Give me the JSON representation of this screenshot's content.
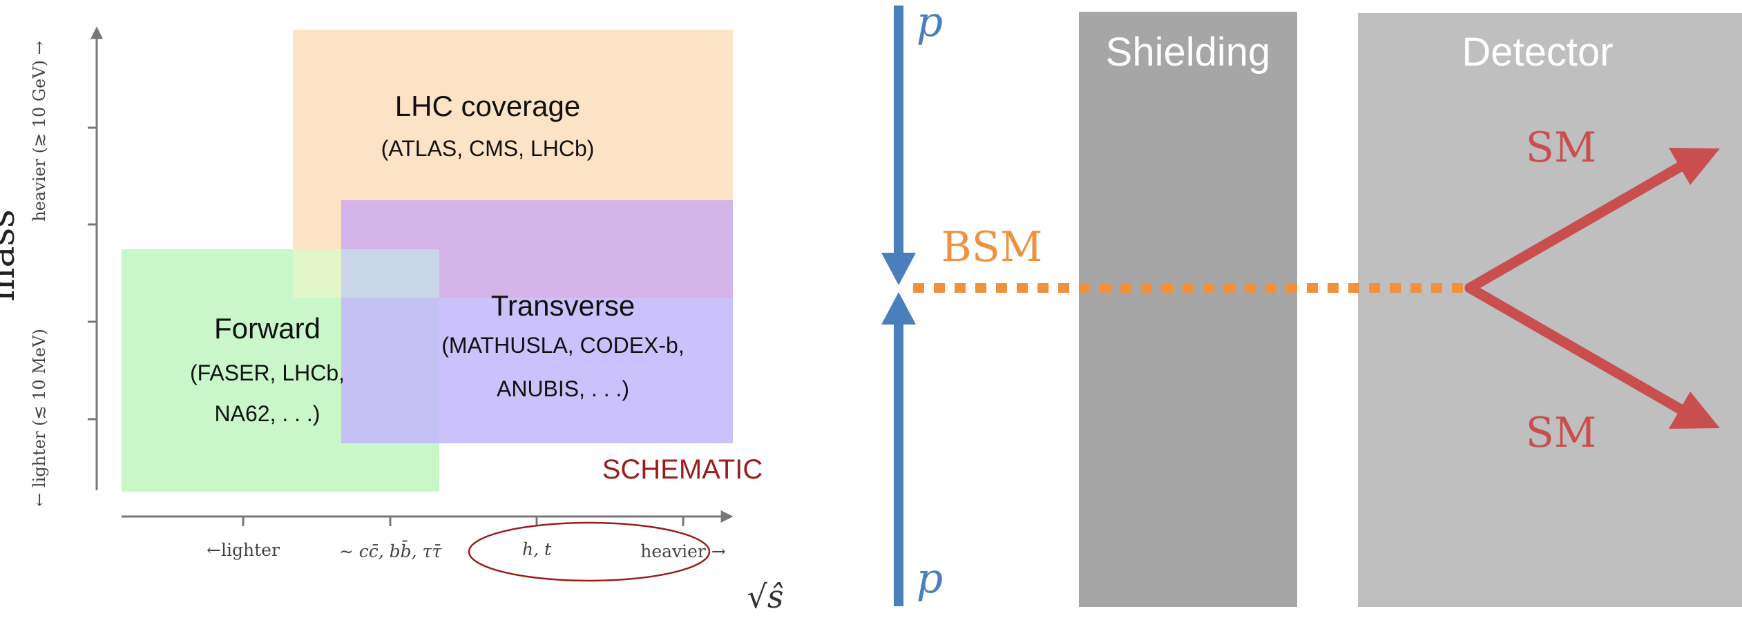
{
  "left_panel": {
    "y_axis_title": "mass",
    "y_axis_upper": "heavier (≳ 10 GeV) →",
    "y_axis_lower": "← lighter (≲ 10 MeV)",
    "x_ticks": {
      "lighter": "←lighter",
      "middle": "∼ cc̄, bb̄, ττ̄",
      "h_t": "h, t",
      "heavier": "heavier →"
    },
    "x_axis_symbol": "√ŝ",
    "regions": {
      "lhc": {
        "title": "LHC coverage",
        "subtitle": "(ATLAS, CMS, LHCb)"
      },
      "forward": {
        "title": "Forward",
        "line1": "(FASER, LHCb,",
        "line2": "NA62, . . .)"
      },
      "transverse": {
        "title": "Transverse",
        "line1": "(MATHUSLA, CODEX-b,",
        "line2": "ANUBIS, . . .)"
      }
    },
    "schematic_label": "SCHEMATIC"
  },
  "right_panel": {
    "beam_top": "p",
    "beam_bottom": "p",
    "bsm_label": "BSM",
    "shielding_label": "Shielding",
    "detector_label": "Detector",
    "sm_upper": "SM",
    "sm_lower": "SM"
  },
  "colors": {
    "lhc_region": "#fde3c6",
    "forward_region": "#c9f7c9",
    "transverse_region": "#c4b9fb",
    "overlap_region": "#d4b3e8",
    "beam": "#4a7ebd",
    "bsm": "#f0913d",
    "sm": "#c94f4f",
    "shielding": "#a6a6a6",
    "detector": "#bfbfbf",
    "schematic": "#9b1c1c"
  }
}
